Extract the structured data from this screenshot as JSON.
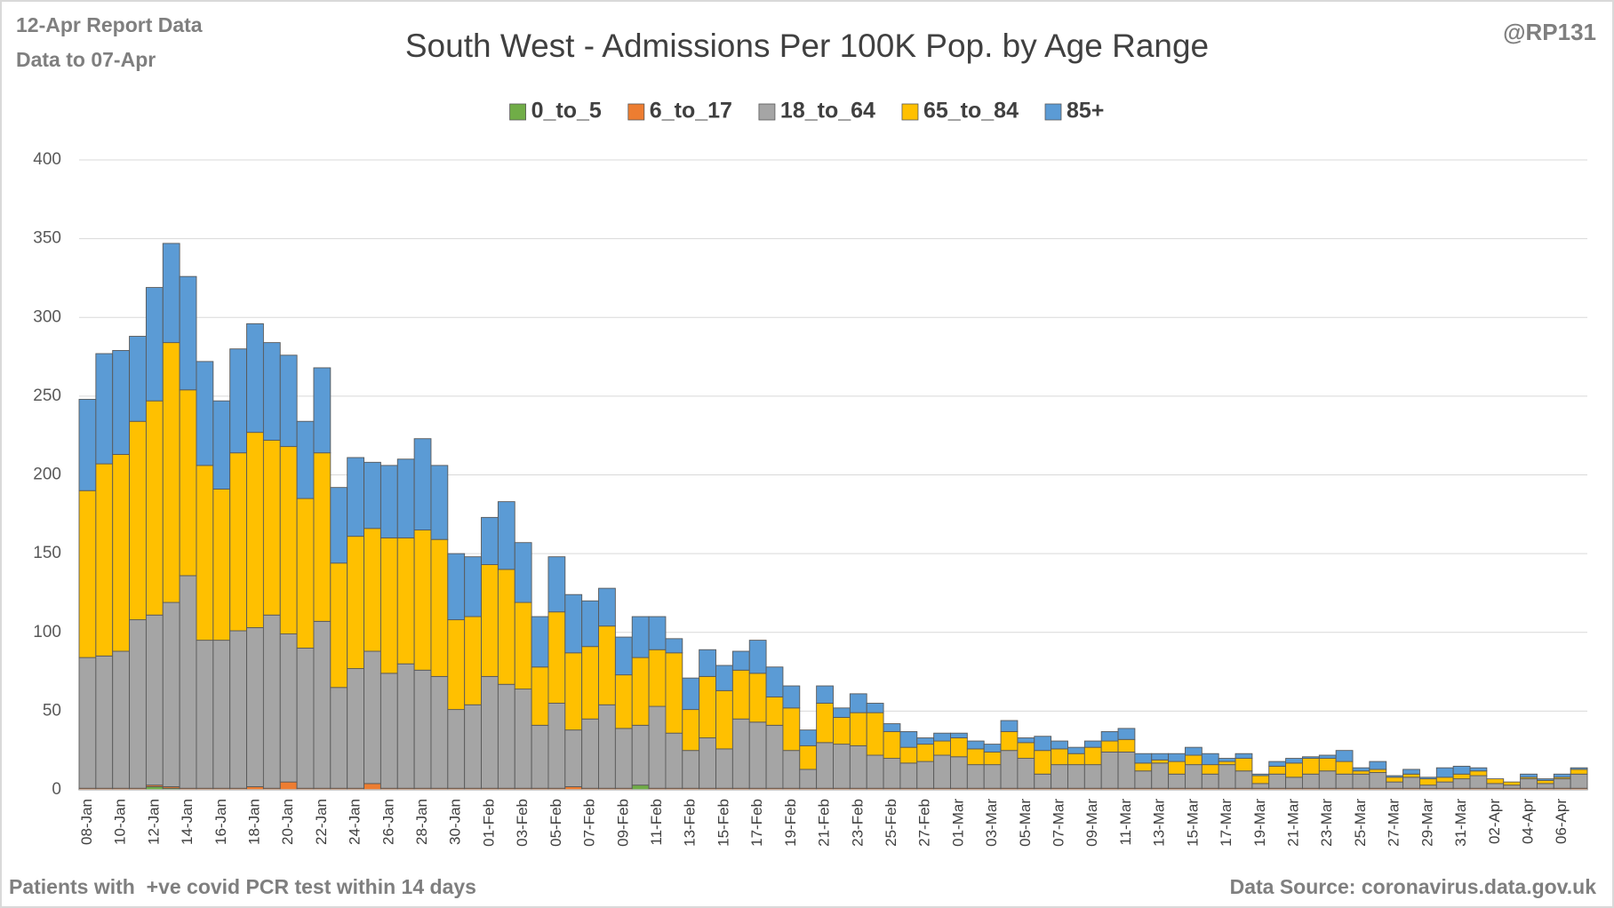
{
  "chart_data": {
    "type": "bar",
    "stacked": true,
    "title": "South West - Admissions Per 100K Pop. by Age Range",
    "header_left": [
      "12-Apr Report Data",
      "Data to 07-Apr"
    ],
    "header_right": "@RP131",
    "footer_left": "Patients with  +ve covid PCR test within 14 days",
    "footer_right": "Data Source: coronavirus.data.gov.uk",
    "legend": "top",
    "grid": true,
    "ylim": [
      0,
      400
    ],
    "yticks": [
      0,
      50,
      100,
      150,
      200,
      250,
      300,
      350,
      400
    ],
    "categories": [
      "08-Jan",
      null,
      "10-Jan",
      null,
      "12-Jan",
      null,
      "14-Jan",
      null,
      "16-Jan",
      null,
      "18-Jan",
      null,
      "20-Jan",
      null,
      "22-Jan",
      null,
      "24-Jan",
      null,
      "26-Jan",
      null,
      "28-Jan",
      null,
      "30-Jan",
      null,
      "01-Feb",
      null,
      "03-Feb",
      null,
      "05-Feb",
      null,
      "07-Feb",
      null,
      "09-Feb",
      null,
      "11-Feb",
      null,
      "13-Feb",
      null,
      "15-Feb",
      null,
      "17-Feb",
      null,
      "19-Feb",
      null,
      "21-Feb",
      null,
      "23-Feb",
      null,
      "25-Feb",
      null,
      "27-Feb",
      null,
      "01-Mar",
      null,
      "03-Mar",
      null,
      "05-Mar",
      null,
      "07-Mar",
      null,
      "09-Mar",
      null,
      "11-Mar",
      null,
      "13-Mar",
      null,
      "15-Mar",
      null,
      "17-Mar",
      null,
      "19-Mar",
      null,
      "21-Mar",
      null,
      "23-Mar",
      null,
      "25-Mar",
      null,
      "27-Mar",
      null,
      "29-Mar",
      null,
      "31-Mar",
      null,
      "02-Apr",
      null,
      "04-Apr",
      null,
      "06-Apr",
      null
    ],
    "series": [
      {
        "name": "0_to_5",
        "color": "#70ad47",
        "values": [
          0,
          0,
          0,
          0,
          2,
          1,
          0,
          0,
          0,
          0,
          0,
          0,
          0,
          0,
          0,
          0,
          0,
          0,
          0,
          0,
          0,
          0,
          0,
          0,
          0,
          0,
          0,
          0,
          0,
          0,
          0,
          0,
          0,
          3,
          0,
          0,
          0,
          0,
          0,
          0,
          0,
          0,
          0,
          0,
          0,
          0,
          0,
          0,
          0,
          0,
          0,
          0,
          0,
          0,
          0,
          0,
          0,
          0,
          0,
          0,
          0,
          0,
          0,
          0,
          0,
          0,
          0,
          0,
          0,
          0,
          0,
          0,
          0,
          0,
          0,
          0,
          0,
          0,
          0,
          0,
          0,
          0,
          0,
          0,
          0,
          0,
          0,
          0,
          0,
          0
        ]
      },
      {
        "name": "6_to_17",
        "color": "#ed7d31",
        "values": [
          1,
          1,
          1,
          1,
          1,
          1,
          1,
          1,
          1,
          1,
          2,
          1,
          5,
          1,
          1,
          1,
          1,
          4,
          1,
          1,
          1,
          1,
          1,
          1,
          1,
          1,
          1,
          1,
          1,
          2,
          1,
          1,
          1,
          0,
          1,
          1,
          1,
          1,
          1,
          1,
          1,
          1,
          1,
          1,
          1,
          1,
          1,
          1,
          1,
          1,
          1,
          1,
          1,
          1,
          1,
          1,
          1,
          1,
          1,
          1,
          1,
          1,
          1,
          1,
          1,
          1,
          1,
          1,
          1,
          1,
          1,
          1,
          1,
          1,
          1,
          1,
          1,
          1,
          1,
          1,
          1,
          1,
          1,
          1,
          1,
          1,
          1,
          1,
          1,
          1
        ]
      },
      {
        "name": "18_to_64",
        "color": "#a5a5a5",
        "values": [
          83,
          84,
          87,
          107,
          108,
          117,
          135,
          94,
          94,
          100,
          101,
          110,
          94,
          89,
          106,
          64,
          76,
          84,
          73,
          79,
          75,
          71,
          50,
          53,
          71,
          66,
          63,
          40,
          54,
          36,
          44,
          53,
          38,
          38,
          52,
          35,
          24,
          32,
          25,
          44,
          42,
          40,
          24,
          12,
          29,
          28,
          27,
          21,
          19,
          16,
          17,
          21,
          20,
          15,
          15,
          24,
          19,
          9,
          15,
          15,
          15,
          23,
          23,
          11,
          16,
          9,
          15,
          9,
          15,
          11,
          3,
          9,
          7,
          9,
          11,
          9,
          9,
          10,
          4,
          7,
          2,
          4,
          6,
          8,
          3,
          2,
          6,
          3,
          6,
          9
        ]
      },
      {
        "name": "65_to_84",
        "color": "#ffc000",
        "values": [
          106,
          122,
          125,
          126,
          136,
          165,
          118,
          111,
          96,
          113,
          124,
          111,
          119,
          95,
          107,
          79,
          84,
          78,
          86,
          80,
          89,
          87,
          57,
          56,
          71,
          73,
          55,
          37,
          58,
          49,
          46,
          50,
          34,
          43,
          36,
          51,
          26,
          39,
          37,
          31,
          31,
          18,
          27,
          15,
          25,
          17,
          21,
          27,
          17,
          10,
          11,
          9,
          12,
          10,
          8,
          12,
          10,
          15,
          10,
          7,
          11,
          7,
          8,
          5,
          2,
          8,
          6,
          6,
          2,
          8,
          5,
          5,
          9,
          10,
          8,
          8,
          2,
          2,
          3,
          2,
          4,
          3,
          3,
          3,
          3,
          2,
          1,
          2,
          1,
          3
        ]
      },
      {
        "name": "85+",
        "color": "#5b9bd5",
        "values": [
          58,
          70,
          66,
          54,
          72,
          63,
          72,
          66,
          56,
          66,
          69,
          62,
          58,
          49,
          54,
          48,
          50,
          42,
          46,
          50,
          58,
          47,
          42,
          38,
          30,
          43,
          38,
          32,
          35,
          37,
          29,
          24,
          24,
          26,
          21,
          9,
          20,
          17,
          16,
          12,
          21,
          19,
          14,
          10,
          11,
          6,
          12,
          6,
          5,
          10,
          4,
          5,
          3,
          5,
          5,
          7,
          3,
          9,
          5,
          4,
          4,
          6,
          7,
          6,
          4,
          5,
          5,
          7,
          2,
          3,
          1,
          3,
          3,
          1,
          2,
          7,
          2,
          5,
          1,
          3,
          1,
          6,
          5,
          2,
          0,
          0,
          2,
          1,
          2,
          1
        ]
      }
    ]
  }
}
